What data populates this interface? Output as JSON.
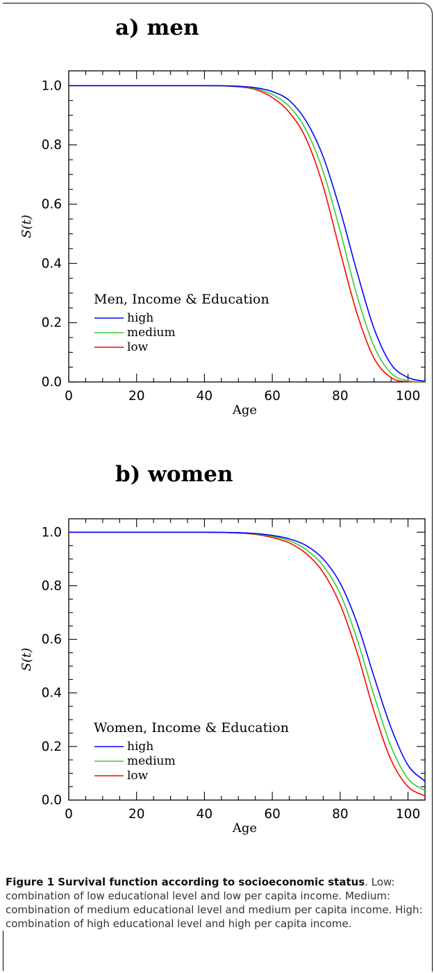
{
  "panels": [
    {
      "title": "a) men",
      "xlabel": "Age",
      "ylabel": "S(t)",
      "legend_title": "Men, Income & Education"
    },
    {
      "title": "b) women",
      "xlabel": "Age",
      "ylabel": "S(t)",
      "legend_title": "Women, Income & Education"
    }
  ],
  "caption": {
    "bold": "Figure 1 Survival function according to socioeconomic status",
    "text": ". Low: combination of low educational level and low per capita income. Medium: combination of medium educational level and medium per capita income. High: combination of high educational level and high per capita income."
  },
  "colors": {
    "high": "#0000ff",
    "medium": "#33cc33",
    "low": "#ff0000"
  },
  "chart_data": [
    {
      "type": "line",
      "title": "a) men",
      "xlabel": "Age",
      "ylabel": "S(t)",
      "xlim": [
        0,
        105
      ],
      "ylim": [
        0,
        1.05
      ],
      "xticks": [
        0,
        20,
        40,
        60,
        80,
        100
      ],
      "yticks": [
        "0.0",
        "0.2",
        "0.4",
        "0.6",
        "0.8",
        "1.0"
      ],
      "legend_title": "Men, Income & Education",
      "legend_position": "lower-left",
      "x": [
        0,
        40,
        50,
        55,
        60,
        65,
        70,
        75,
        80,
        85,
        90,
        95,
        100,
        105
      ],
      "series": [
        {
          "name": "high",
          "values": [
            1.0,
            1.0,
            0.998,
            0.993,
            0.98,
            0.95,
            0.88,
            0.76,
            0.58,
            0.37,
            0.18,
            0.06,
            0.015,
            0.002
          ]
        },
        {
          "name": "medium",
          "values": [
            1.0,
            1.0,
            0.997,
            0.99,
            0.97,
            0.93,
            0.85,
            0.71,
            0.51,
            0.29,
            0.12,
            0.03,
            0.004,
            0.0
          ]
        },
        {
          "name": "low",
          "values": [
            1.0,
            1.0,
            0.996,
            0.987,
            0.96,
            0.91,
            0.82,
            0.66,
            0.44,
            0.23,
            0.08,
            0.015,
            0.001,
            0.0
          ]
        }
      ]
    },
    {
      "type": "line",
      "title": "b) women",
      "xlabel": "Age",
      "ylabel": "S(t)",
      "xlim": [
        0,
        105
      ],
      "ylim": [
        0,
        1.05
      ],
      "xticks": [
        0,
        20,
        40,
        60,
        80,
        100
      ],
      "yticks": [
        "0.0",
        "0.2",
        "0.4",
        "0.6",
        "0.8",
        "1.0"
      ],
      "legend_title": "Women, Income & Education",
      "legend_position": "lower-left",
      "x": [
        0,
        40,
        50,
        55,
        60,
        65,
        70,
        75,
        80,
        85,
        90,
        95,
        100,
        105
      ],
      "series": [
        {
          "name": "high",
          "values": [
            1.0,
            1.0,
            0.998,
            0.995,
            0.988,
            0.975,
            0.95,
            0.9,
            0.81,
            0.66,
            0.46,
            0.27,
            0.13,
            0.07
          ]
        },
        {
          "name": "medium",
          "values": [
            1.0,
            1.0,
            0.998,
            0.994,
            0.985,
            0.968,
            0.935,
            0.875,
            0.77,
            0.6,
            0.39,
            0.2,
            0.08,
            0.035
          ]
        },
        {
          "name": "low",
          "values": [
            1.0,
            1.0,
            0.997,
            0.992,
            0.98,
            0.96,
            0.92,
            0.85,
            0.73,
            0.55,
            0.33,
            0.15,
            0.05,
            0.015
          ]
        }
      ]
    }
  ]
}
